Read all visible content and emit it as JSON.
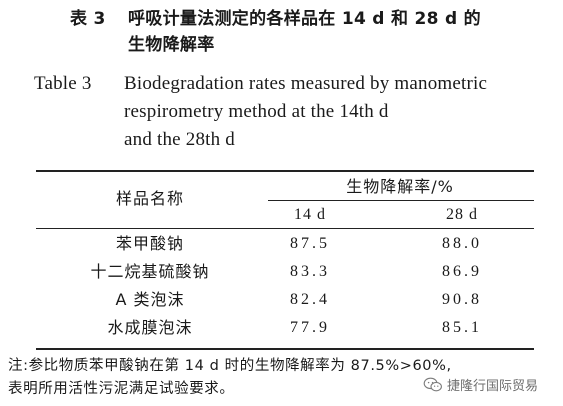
{
  "title_cn": {
    "label": "表 3",
    "line1": "呼吸计量法测定的各样品在 14 d 和 28 d 的",
    "line2": "生物降解率"
  },
  "title_en": {
    "label": "Table 3",
    "line1": "Biodegradation rates measured by manometric",
    "line2": "respirometry method at the 14th d",
    "line3": "and the 28th d"
  },
  "table": {
    "col_sample": "样品名称",
    "col_group": "生物降解率/%",
    "col_14d": "14 d",
    "col_28d": "28 d",
    "rows": [
      {
        "name": "苯甲酸钠",
        "d14": "87.5",
        "d28": "88.0"
      },
      {
        "name": "十二烷基硫酸钠",
        "d14": "83.3",
        "d28": "86.9"
      },
      {
        "name": "A 类泡沫",
        "d14": "82.4",
        "d28": "90.8"
      },
      {
        "name": "水成膜泡沫",
        "d14": "77.9",
        "d28": "85.1"
      }
    ]
  },
  "note": {
    "line1": "注:参比物质苯甲酸钠在第 14 d 时的生物降解率为 87.5%>60%,",
    "line2": "表明所用活性污泥满足试验要求。"
  },
  "watermark": {
    "text": "捷隆行国际贸易",
    "icon": "wechat-icon"
  }
}
